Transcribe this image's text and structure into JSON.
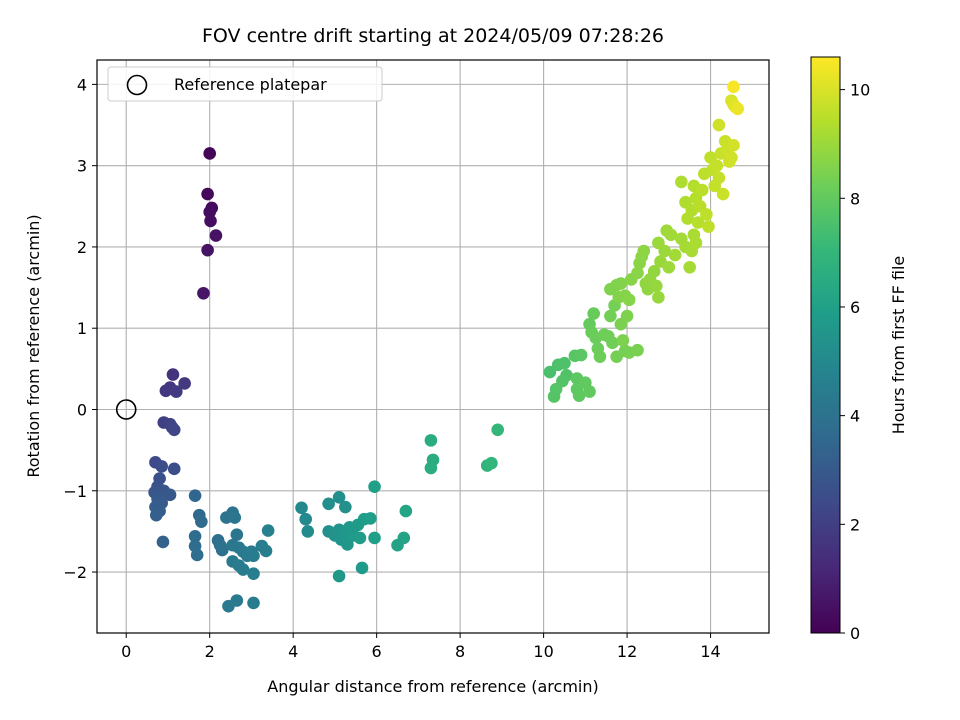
{
  "chart_data": {
    "type": "scatter",
    "title": "FOV centre drift starting at 2024/05/09 07:28:26",
    "xlabel": "Angular distance from reference (arcmin)",
    "ylabel": "Rotation from reference (arcmin)",
    "xlim": [
      -0.7,
      15.4
    ],
    "ylim": [
      -2.75,
      4.3
    ],
    "xticks": [
      0,
      2,
      4,
      6,
      8,
      10,
      12,
      14
    ],
    "yticks": [
      -2,
      -1,
      0,
      1,
      2,
      3,
      4
    ],
    "grid": true,
    "legend": {
      "placement": "top-left",
      "entries": [
        {
          "label": "Reference platepar",
          "marker": "open-circle"
        }
      ]
    },
    "reference_point": {
      "x": 0,
      "y": 0
    },
    "colorbar": {
      "label": "Hours from first FF file",
      "colormap": "viridis",
      "range": [
        0,
        10.6
      ],
      "ticks": [
        0,
        2,
        4,
        6,
        8,
        10
      ],
      "colors": [
        "#440154",
        "#482878",
        "#3e4989",
        "#31688e",
        "#26828e",
        "#1f9e89",
        "#35b779",
        "#6ece58",
        "#b5de2b",
        "#fde725"
      ]
    },
    "points": [
      {
        "x": 2.0,
        "y": 3.15,
        "c": 0.1
      },
      {
        "x": 1.95,
        "y": 2.65,
        "c": 0.2
      },
      {
        "x": 2.05,
        "y": 2.48,
        "c": 0.3
      },
      {
        "x": 2.0,
        "y": 2.43,
        "c": 0.35
      },
      {
        "x": 2.02,
        "y": 2.32,
        "c": 0.4
      },
      {
        "x": 2.15,
        "y": 2.14,
        "c": 0.5
      },
      {
        "x": 1.95,
        "y": 1.96,
        "c": 0.55
      },
      {
        "x": 1.85,
        "y": 1.43,
        "c": 0.6
      },
      {
        "x": 1.12,
        "y": 0.43,
        "c": 1.6
      },
      {
        "x": 1.4,
        "y": 0.32,
        "c": 1.8
      },
      {
        "x": 1.05,
        "y": 0.27,
        "c": 1.7
      },
      {
        "x": 0.95,
        "y": 0.23,
        "c": 1.75
      },
      {
        "x": 1.2,
        "y": 0.22,
        "c": 1.85
      },
      {
        "x": 0.9,
        "y": -0.16,
        "c": 2.0
      },
      {
        "x": 1.05,
        "y": -0.18,
        "c": 2.1
      },
      {
        "x": 1.1,
        "y": -0.22,
        "c": 2.15
      },
      {
        "x": 1.15,
        "y": -0.25,
        "c": 2.2
      },
      {
        "x": 0.7,
        "y": -0.65,
        "c": 2.4
      },
      {
        "x": 0.85,
        "y": -0.7,
        "c": 2.5
      },
      {
        "x": 1.15,
        "y": -0.73,
        "c": 2.55
      },
      {
        "x": 0.8,
        "y": -0.85,
        "c": 2.6
      },
      {
        "x": 0.75,
        "y": -0.95,
        "c": 2.7
      },
      {
        "x": 0.68,
        "y": -1.02,
        "c": 2.8
      },
      {
        "x": 0.9,
        "y": -1.0,
        "c": 2.85
      },
      {
        "x": 1.05,
        "y": -1.05,
        "c": 2.9
      },
      {
        "x": 0.75,
        "y": -1.1,
        "c": 3.0
      },
      {
        "x": 0.85,
        "y": -1.15,
        "c": 3.05
      },
      {
        "x": 0.7,
        "y": -1.2,
        "c": 3.1
      },
      {
        "x": 0.8,
        "y": -1.25,
        "c": 3.15
      },
      {
        "x": 0.72,
        "y": -1.3,
        "c": 3.2
      },
      {
        "x": 0.88,
        "y": -1.63,
        "c": 3.3
      },
      {
        "x": 1.65,
        "y": -1.06,
        "c": 3.5
      },
      {
        "x": 1.75,
        "y": -1.3,
        "c": 3.6
      },
      {
        "x": 1.8,
        "y": -1.38,
        "c": 3.65
      },
      {
        "x": 1.65,
        "y": -1.56,
        "c": 3.7
      },
      {
        "x": 1.65,
        "y": -1.68,
        "c": 3.75
      },
      {
        "x": 1.7,
        "y": -1.79,
        "c": 3.8
      },
      {
        "x": 2.2,
        "y": -1.61,
        "c": 3.85
      },
      {
        "x": 2.25,
        "y": -1.67,
        "c": 3.9
      },
      {
        "x": 2.3,
        "y": -1.73,
        "c": 3.95
      },
      {
        "x": 2.4,
        "y": -1.33,
        "c": 4.0
      },
      {
        "x": 2.55,
        "y": -1.27,
        "c": 4.05
      },
      {
        "x": 2.6,
        "y": -1.33,
        "c": 4.1
      },
      {
        "x": 2.65,
        "y": -1.54,
        "c": 4.15
      },
      {
        "x": 2.55,
        "y": -1.67,
        "c": 4.2
      },
      {
        "x": 2.7,
        "y": -1.7,
        "c": 4.25
      },
      {
        "x": 2.8,
        "y": -1.75,
        "c": 4.3
      },
      {
        "x": 2.9,
        "y": -1.8,
        "c": 4.35
      },
      {
        "x": 3.0,
        "y": -1.75,
        "c": 4.4
      },
      {
        "x": 3.05,
        "y": -1.8,
        "c": 4.45
      },
      {
        "x": 3.25,
        "y": -1.68,
        "c": 4.5
      },
      {
        "x": 3.35,
        "y": -1.74,
        "c": 4.55
      },
      {
        "x": 3.4,
        "y": -1.49,
        "c": 4.6
      },
      {
        "x": 2.55,
        "y": -1.87,
        "c": 4.35
      },
      {
        "x": 2.7,
        "y": -1.92,
        "c": 4.4
      },
      {
        "x": 2.8,
        "y": -1.97,
        "c": 4.45
      },
      {
        "x": 3.05,
        "y": -2.02,
        "c": 4.5
      },
      {
        "x": 2.45,
        "y": -2.42,
        "c": 4.3
      },
      {
        "x": 2.65,
        "y": -2.35,
        "c": 4.35
      },
      {
        "x": 3.05,
        "y": -2.38,
        "c": 4.4
      },
      {
        "x": 4.2,
        "y": -1.21,
        "c": 5.0
      },
      {
        "x": 4.3,
        "y": -1.35,
        "c": 5.05
      },
      {
        "x": 4.35,
        "y": -1.5,
        "c": 5.1
      },
      {
        "x": 4.85,
        "y": -1.16,
        "c": 5.2
      },
      {
        "x": 5.1,
        "y": -1.08,
        "c": 5.25
      },
      {
        "x": 5.25,
        "y": -1.2,
        "c": 5.3
      },
      {
        "x": 4.85,
        "y": -1.5,
        "c": 5.35
      },
      {
        "x": 5.0,
        "y": -1.55,
        "c": 5.4
      },
      {
        "x": 5.1,
        "y": -1.48,
        "c": 5.45
      },
      {
        "x": 5.15,
        "y": -1.6,
        "c": 5.5
      },
      {
        "x": 5.25,
        "y": -1.52,
        "c": 5.55
      },
      {
        "x": 5.3,
        "y": -1.66,
        "c": 5.6
      },
      {
        "x": 5.35,
        "y": -1.45,
        "c": 5.65
      },
      {
        "x": 5.45,
        "y": -1.55,
        "c": 5.7
      },
      {
        "x": 5.55,
        "y": -1.42,
        "c": 5.75
      },
      {
        "x": 5.6,
        "y": -1.58,
        "c": 5.8
      },
      {
        "x": 5.7,
        "y": -1.35,
        "c": 5.85
      },
      {
        "x": 5.85,
        "y": -1.34,
        "c": 5.9
      },
      {
        "x": 5.95,
        "y": -1.58,
        "c": 5.95
      },
      {
        "x": 5.95,
        "y": -0.95,
        "c": 6.0
      },
      {
        "x": 5.1,
        "y": -2.05,
        "c": 5.6
      },
      {
        "x": 5.65,
        "y": -1.95,
        "c": 5.7
      },
      {
        "x": 6.5,
        "y": -1.67,
        "c": 6.1
      },
      {
        "x": 6.65,
        "y": -1.58,
        "c": 6.15
      },
      {
        "x": 6.7,
        "y": -1.25,
        "c": 6.2
      },
      {
        "x": 7.3,
        "y": -0.38,
        "c": 6.5
      },
      {
        "x": 7.35,
        "y": -0.62,
        "c": 6.55
      },
      {
        "x": 7.3,
        "y": -0.72,
        "c": 6.6
      },
      {
        "x": 8.65,
        "y": -0.69,
        "c": 6.9
      },
      {
        "x": 8.75,
        "y": -0.66,
        "c": 6.95
      },
      {
        "x": 8.9,
        "y": -0.25,
        "c": 7.0
      },
      {
        "x": 10.15,
        "y": 0.46,
        "c": 7.5
      },
      {
        "x": 10.35,
        "y": 0.55,
        "c": 7.55
      },
      {
        "x": 10.5,
        "y": 0.57,
        "c": 7.6
      },
      {
        "x": 10.55,
        "y": 0.42,
        "c": 7.65
      },
      {
        "x": 10.45,
        "y": 0.35,
        "c": 7.7
      },
      {
        "x": 10.3,
        "y": 0.25,
        "c": 7.72
      },
      {
        "x": 10.25,
        "y": 0.16,
        "c": 7.75
      },
      {
        "x": 10.75,
        "y": 0.66,
        "c": 7.8
      },
      {
        "x": 10.9,
        "y": 0.67,
        "c": 7.85
      },
      {
        "x": 10.8,
        "y": 0.38,
        "c": 7.9
      },
      {
        "x": 10.8,
        "y": 0.25,
        "c": 7.92
      },
      {
        "x": 10.85,
        "y": 0.17,
        "c": 7.95
      },
      {
        "x": 11.0,
        "y": 0.33,
        "c": 7.98
      },
      {
        "x": 11.1,
        "y": 0.22,
        "c": 8.0
      },
      {
        "x": 11.1,
        "y": 1.05,
        "c": 8.05
      },
      {
        "x": 11.2,
        "y": 1.18,
        "c": 8.1
      },
      {
        "x": 11.15,
        "y": 0.95,
        "c": 8.12
      },
      {
        "x": 11.25,
        "y": 0.88,
        "c": 8.15
      },
      {
        "x": 11.3,
        "y": 0.75,
        "c": 8.18
      },
      {
        "x": 11.35,
        "y": 0.65,
        "c": 8.2
      },
      {
        "x": 11.45,
        "y": 0.92,
        "c": 8.22
      },
      {
        "x": 11.55,
        "y": 0.9,
        "c": 8.25
      },
      {
        "x": 11.65,
        "y": 0.82,
        "c": 8.28
      },
      {
        "x": 11.6,
        "y": 1.15,
        "c": 8.3
      },
      {
        "x": 11.7,
        "y": 1.28,
        "c": 8.32
      },
      {
        "x": 11.75,
        "y": 0.65,
        "c": 8.35
      },
      {
        "x": 11.95,
        "y": 0.72,
        "c": 8.38
      },
      {
        "x": 12.05,
        "y": 0.7,
        "c": 8.4
      },
      {
        "x": 12.25,
        "y": 0.73,
        "c": 8.42
      },
      {
        "x": 11.85,
        "y": 1.05,
        "c": 8.45
      },
      {
        "x": 11.9,
        "y": 0.85,
        "c": 8.47
      },
      {
        "x": 12.0,
        "y": 1.15,
        "c": 8.5
      },
      {
        "x": 11.6,
        "y": 1.48,
        "c": 8.52
      },
      {
        "x": 11.75,
        "y": 1.53,
        "c": 8.55
      },
      {
        "x": 11.85,
        "y": 1.55,
        "c": 8.57
      },
      {
        "x": 11.8,
        "y": 1.38,
        "c": 8.6
      },
      {
        "x": 11.95,
        "y": 1.4,
        "c": 8.62
      },
      {
        "x": 12.05,
        "y": 1.35,
        "c": 8.65
      },
      {
        "x": 12.1,
        "y": 1.6,
        "c": 8.67
      },
      {
        "x": 12.25,
        "y": 1.68,
        "c": 8.7
      },
      {
        "x": 12.3,
        "y": 1.8,
        "c": 8.72
      },
      {
        "x": 12.35,
        "y": 1.88,
        "c": 8.75
      },
      {
        "x": 12.4,
        "y": 1.95,
        "c": 8.77
      },
      {
        "x": 12.45,
        "y": 1.55,
        "c": 8.8
      },
      {
        "x": 12.5,
        "y": 1.48,
        "c": 8.82
      },
      {
        "x": 12.55,
        "y": 1.6,
        "c": 8.85
      },
      {
        "x": 12.65,
        "y": 1.7,
        "c": 8.87
      },
      {
        "x": 12.7,
        "y": 1.52,
        "c": 8.9
      },
      {
        "x": 12.75,
        "y": 1.38,
        "c": 8.92
      },
      {
        "x": 12.8,
        "y": 1.82,
        "c": 8.95
      },
      {
        "x": 12.75,
        "y": 2.05,
        "c": 8.97
      },
      {
        "x": 12.9,
        "y": 1.95,
        "c": 9.0
      },
      {
        "x": 13.0,
        "y": 1.75,
        "c": 9.02
      },
      {
        "x": 12.95,
        "y": 2.2,
        "c": 9.05
      },
      {
        "x": 13.05,
        "y": 2.15,
        "c": 9.07
      },
      {
        "x": 13.15,
        "y": 1.9,
        "c": 9.1
      },
      {
        "x": 13.3,
        "y": 2.1,
        "c": 9.12
      },
      {
        "x": 13.4,
        "y": 2.0,
        "c": 9.15
      },
      {
        "x": 13.5,
        "y": 1.75,
        "c": 9.17
      },
      {
        "x": 13.55,
        "y": 1.95,
        "c": 9.2
      },
      {
        "x": 13.6,
        "y": 2.15,
        "c": 9.22
      },
      {
        "x": 13.65,
        "y": 2.05,
        "c": 9.25
      },
      {
        "x": 13.3,
        "y": 2.8,
        "c": 9.3
      },
      {
        "x": 13.4,
        "y": 2.55,
        "c": 9.32
      },
      {
        "x": 13.45,
        "y": 2.35,
        "c": 9.35
      },
      {
        "x": 13.55,
        "y": 2.45,
        "c": 9.37
      },
      {
        "x": 13.6,
        "y": 2.75,
        "c": 9.4
      },
      {
        "x": 13.65,
        "y": 2.6,
        "c": 9.42
      },
      {
        "x": 13.7,
        "y": 2.3,
        "c": 9.45
      },
      {
        "x": 13.75,
        "y": 2.5,
        "c": 9.47
      },
      {
        "x": 13.8,
        "y": 2.7,
        "c": 9.5
      },
      {
        "x": 13.85,
        "y": 2.9,
        "c": 9.52
      },
      {
        "x": 13.9,
        "y": 2.4,
        "c": 9.55
      },
      {
        "x": 13.95,
        "y": 2.25,
        "c": 9.57
      },
      {
        "x": 14.0,
        "y": 3.1,
        "c": 9.6
      },
      {
        "x": 14.05,
        "y": 2.95,
        "c": 9.62
      },
      {
        "x": 14.1,
        "y": 2.75,
        "c": 9.65
      },
      {
        "x": 14.15,
        "y": 3.0,
        "c": 9.67
      },
      {
        "x": 14.2,
        "y": 2.85,
        "c": 9.7
      },
      {
        "x": 14.25,
        "y": 3.15,
        "c": 9.72
      },
      {
        "x": 14.3,
        "y": 2.65,
        "c": 9.75
      },
      {
        "x": 14.35,
        "y": 3.3,
        "c": 9.77
      },
      {
        "x": 14.4,
        "y": 3.2,
        "c": 9.8
      },
      {
        "x": 14.2,
        "y": 3.5,
        "c": 9.82
      },
      {
        "x": 14.45,
        "y": 3.05,
        "c": 9.85
      },
      {
        "x": 14.5,
        "y": 3.1,
        "c": 9.87
      },
      {
        "x": 14.55,
        "y": 3.25,
        "c": 9.9
      },
      {
        "x": 14.5,
        "y": 3.8,
        "c": 10.0
      },
      {
        "x": 14.55,
        "y": 3.75,
        "c": 10.1
      },
      {
        "x": 14.6,
        "y": 3.72,
        "c": 10.2
      },
      {
        "x": 14.65,
        "y": 3.7,
        "c": 10.3
      },
      {
        "x": 14.55,
        "y": 3.97,
        "c": 10.5
      }
    ]
  }
}
